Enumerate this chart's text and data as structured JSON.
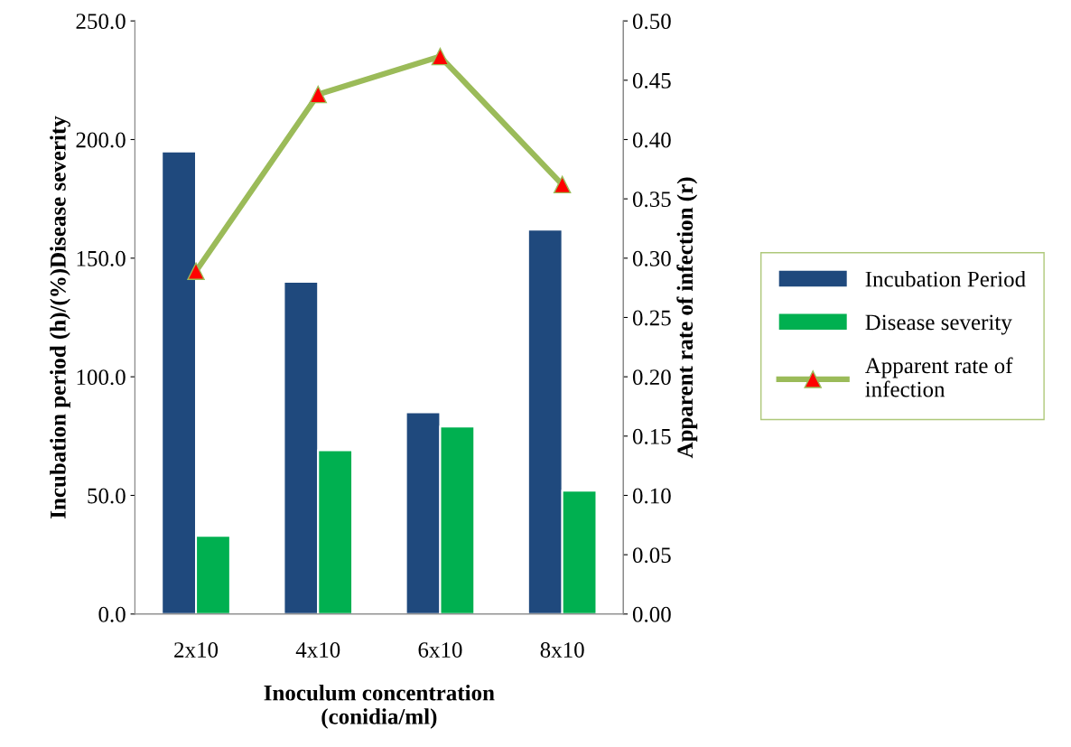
{
  "chart_data": {
    "type": "bar",
    "xlabel": "Inoculum concentration\n(conidia/ml)",
    "ylabel": "Incubation period (h)/(%)Disease severity",
    "y2label": "Apparent rate of infection (r)",
    "categories": [
      "2x10",
      "4x10",
      "6x10",
      "8x10"
    ],
    "series": [
      {
        "name": "Incubation Period",
        "color": "#1f497d",
        "values": [
          195,
          140,
          85,
          162
        ]
      },
      {
        "name": "Disease severity",
        "color": "#00b050",
        "values": [
          33,
          69,
          79,
          52
        ]
      },
      {
        "name": "Apparent rate of infection",
        "type": "line",
        "axis": "y2",
        "color": "#9bbb59",
        "marker": "triangle",
        "values": [
          0.289,
          0.438,
          0.47,
          0.362
        ]
      }
    ],
    "ylim": [
      0,
      250
    ],
    "yticks": [
      {
        "value": 0,
        "label": "0.0"
      },
      {
        "value": 50,
        "label": "50.0"
      },
      {
        "value": 100,
        "label": "100.0"
      },
      {
        "value": 150,
        "label": "150.0"
      },
      {
        "value": 200,
        "label": "200.0"
      },
      {
        "value": 250,
        "label": "250.0"
      }
    ],
    "y2lim": [
      0,
      0.5
    ],
    "y2ticks": [
      {
        "value": 0,
        "label": "0.00"
      },
      {
        "value": 0.05,
        "label": "0.05"
      },
      {
        "value": 0.1,
        "label": "0.10"
      },
      {
        "value": 0.15,
        "label": "0.15"
      },
      {
        "value": 0.2,
        "label": "0.20"
      },
      {
        "value": 0.25,
        "label": "0.25"
      },
      {
        "value": 0.3,
        "label": "0.30"
      },
      {
        "value": 0.35,
        "label": "0.35"
      },
      {
        "value": 0.4,
        "label": "0.40"
      },
      {
        "value": 0.45,
        "label": "0.45"
      },
      {
        "value": 0.5,
        "label": "0.50"
      }
    ],
    "legend": "right",
    "grid": false
  }
}
